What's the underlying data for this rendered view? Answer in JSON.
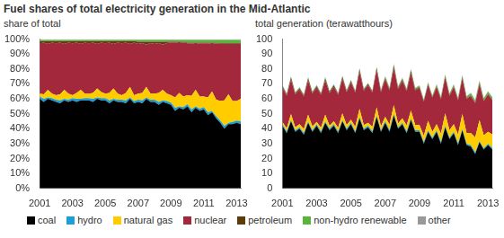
{
  "title": "Fuel shares of total electricity generation in the Mid-Atlantic",
  "chart_data": [
    {
      "type": "area",
      "subtitle": "share of total",
      "stacked": true,
      "grid": false,
      "legend": "bottom",
      "categories": [
        "2001",
        null,
        null,
        null,
        null,
        null,
        null,
        null,
        "2003",
        null,
        null,
        null,
        null,
        null,
        null,
        null,
        "2005",
        null,
        null,
        null,
        null,
        null,
        null,
        null,
        "2007",
        null,
        null,
        null,
        null,
        null,
        null,
        null,
        "2009",
        null,
        null,
        null,
        null,
        null,
        null,
        null,
        "2011",
        null,
        null,
        null,
        null,
        null,
        null,
        null,
        "2013",
        null
      ],
      "ylim": [
        0,
        100
      ],
      "yticks": [
        {
          "value": 0,
          "label": "0%"
        },
        {
          "value": 10,
          "label": "10%"
        },
        {
          "value": 20,
          "label": "20%"
        },
        {
          "value": 30,
          "label": "30%"
        },
        {
          "value": 40,
          "label": "40%"
        },
        {
          "value": 50,
          "label": "50%"
        },
        {
          "value": 60,
          "label": "60%"
        },
        {
          "value": 70,
          "label": "70%"
        },
        {
          "value": 80,
          "label": "80%"
        },
        {
          "value": 90,
          "label": "90%"
        },
        {
          "value": 100,
          "label": "100%"
        }
      ],
      "series": [
        {
          "name": "coal",
          "color": "#000000",
          "values": [
            60,
            58,
            60,
            59,
            58,
            57,
            59,
            58,
            59,
            58,
            59,
            59,
            59,
            58,
            60,
            59,
            59,
            57,
            59,
            58,
            58,
            57,
            60,
            57,
            58,
            57,
            60,
            58,
            58,
            56,
            58,
            57,
            56,
            52,
            54,
            53,
            55,
            51,
            54,
            52,
            53,
            49,
            51,
            47,
            44,
            40,
            43,
            43,
            44,
            43
          ]
        },
        {
          "name": "hydro",
          "color": "#1a9fd9",
          "values": [
            1.5,
            2,
            1,
            1.5,
            1.5,
            2,
            1,
            1.5,
            1.5,
            2,
            1,
            1.5,
            1.5,
            2,
            1,
            1.5,
            1.5,
            2,
            1,
            1.5,
            1.5,
            2,
            1,
            1.5,
            1.5,
            2,
            1,
            1.5,
            1.5,
            2,
            1,
            1.5,
            1.5,
            2,
            1,
            1.5,
            1.5,
            2,
            1,
            1.5,
            1.5,
            2,
            1,
            1.5,
            1.5,
            2,
            1,
            1.5,
            1.5,
            2
          ]
        },
        {
          "name": "natural gas",
          "color": "#ffcc00",
          "values": [
            2,
            3,
            5,
            3,
            3,
            4,
            6,
            4,
            2,
            4,
            6,
            3,
            3,
            4,
            6,
            4,
            3,
            5,
            7,
            4,
            3,
            5,
            7,
            4,
            4,
            5,
            7,
            4,
            4,
            6,
            7,
            5,
            5,
            7,
            9,
            7,
            6,
            9,
            11,
            8,
            7,
            10,
            13,
            11,
            13,
            17,
            19,
            14,
            13,
            15
          ]
        },
        {
          "name": "nuclear",
          "color": "#a3283c",
          "values": [
            33.7,
            34.7,
            30.7,
            34.2,
            34.7,
            34.7,
            30.7,
            34.2,
            34.7,
            33.7,
            30.7,
            34.2,
            33.7,
            33.7,
            29.7,
            33.2,
            33.7,
            33.7,
            29.7,
            34.2,
            34.7,
            33.7,
            28.7,
            35.2,
            33.3,
            33.3,
            28.3,
            33.8,
            33.3,
            33.3,
            30.3,
            33.8,
            35.3,
            36.8,
            33.3,
            36.3,
            34.7,
            35.2,
            30.7,
            35.7,
            35.7,
            36.2,
            31.7,
            37.7,
            38.2,
            37.7,
            33.7,
            38.2,
            38.2,
            36.7
          ]
        },
        {
          "name": "petroleum",
          "color": "#5a3d0a",
          "values": [
            1.5,
            1,
            2,
            1,
            1.5,
            1,
            2,
            1,
            1.5,
            1,
            2,
            1,
            1.5,
            1,
            2,
            1,
            1.5,
            1,
            2,
            1,
            1.5,
            1,
            2,
            1,
            1.5,
            1,
            2,
            1,
            1.5,
            1,
            2,
            1,
            0.5,
            0.5,
            1,
            0.5,
            0.5,
            0.5,
            1,
            0.5,
            0.5,
            0.5,
            1,
            0.5,
            0.5,
            0.5,
            0.5,
            0.5,
            0.5,
            0.5
          ]
        },
        {
          "name": "non-hydro renewable",
          "color": "#5ab43c",
          "values": [
            0.8,
            0.8,
            0.8,
            0.8,
            0.8,
            0.8,
            0.8,
            0.8,
            0.8,
            0.8,
            0.8,
            0.8,
            0.8,
            0.8,
            0.8,
            0.8,
            0.8,
            0.8,
            0.8,
            0.8,
            0.8,
            0.8,
            0.8,
            0.8,
            1.2,
            1.2,
            1.2,
            1.2,
            1.2,
            1.2,
            1.2,
            1.2,
            1.2,
            1.2,
            1.2,
            1.2,
            1.8,
            1.8,
            1.8,
            1.8,
            1.8,
            1.8,
            1.8,
            1.8,
            2.3,
            2.3,
            2.3,
            2.3,
            2.3,
            2.3
          ]
        },
        {
          "name": "other",
          "color": "#999999",
          "values": [
            0.5,
            0.5,
            0.5,
            0.5,
            0.5,
            0.5,
            0.5,
            0.5,
            0.5,
            0.5,
            0.5,
            0.5,
            0.5,
            0.5,
            0.5,
            0.5,
            0.5,
            0.5,
            0.5,
            0.5,
            0.5,
            0.5,
            0.5,
            0.5,
            0.5,
            0.5,
            0.5,
            0.5,
            0.5,
            0.5,
            0.5,
            0.5,
            0.5,
            0.5,
            0.5,
            0.5,
            0.5,
            0.5,
            0.5,
            0.5,
            0.5,
            0.5,
            0.5,
            0.5,
            0.5,
            0.5,
            0.5,
            0.5,
            0.5,
            0.5
          ]
        }
      ]
    },
    {
      "type": "area",
      "subtitle": "total generation  (terawatthours)",
      "stacked": true,
      "grid": false,
      "categories": [
        "2001",
        null,
        null,
        null,
        null,
        null,
        null,
        null,
        "2003",
        null,
        null,
        null,
        null,
        null,
        null,
        null,
        "2005",
        null,
        null,
        null,
        null,
        null,
        null,
        null,
        "2007",
        null,
        null,
        null,
        null,
        null,
        null,
        null,
        "2009",
        null,
        null,
        null,
        null,
        null,
        null,
        null,
        "2011",
        null,
        null,
        null,
        null,
        null,
        null,
        null,
        "2013",
        null
      ],
      "ylim": [
        0,
        100
      ],
      "yticks": [
        0,
        10,
        20,
        30,
        40,
        50,
        60,
        70,
        80,
        90,
        100
      ],
      "series": [
        {
          "name": "coal",
          "color": "#000000",
          "values": [
            42,
            37,
            45,
            38,
            40,
            36,
            44,
            38,
            42,
            37,
            44,
            39,
            42,
            37,
            45,
            39,
            43,
            37,
            47,
            39,
            41,
            37,
            48,
            38,
            44,
            38,
            49,
            40,
            43,
            37,
            46,
            38,
            38,
            30,
            38,
            33,
            38,
            30,
            41,
            33,
            37,
            29,
            39,
            29,
            28,
            23,
            31,
            26,
            29,
            26
          ]
        },
        {
          "name": "hydro",
          "color": "#1a9fd9",
          "values": [
            1,
            1.2,
            0.8,
            1,
            1,
            1.2,
            0.8,
            1,
            1,
            1.2,
            0.8,
            1,
            1,
            1.2,
            0.8,
            1,
            1,
            1.2,
            0.8,
            1,
            1,
            1.2,
            0.8,
            1,
            1,
            1.2,
            0.8,
            1,
            1,
            1.2,
            0.8,
            1,
            1,
            1.2,
            0.8,
            1,
            1,
            1.2,
            0.8,
            1,
            1,
            1.2,
            0.8,
            1,
            1,
            1.2,
            0.8,
            1,
            1,
            1.2
          ]
        },
        {
          "name": "natural gas",
          "color": "#ffcc00",
          "values": [
            1.5,
            2,
            4,
            2,
            2,
            2.5,
            4.5,
            2.5,
            1.5,
            2.5,
            4.5,
            2,
            2,
            2.5,
            4.5,
            2.5,
            2,
            3,
            5.5,
            2.5,
            2,
            3,
            5.5,
            2.5,
            3,
            3.5,
            6,
            2.5,
            3,
            4,
            5.5,
            3.5,
            3.5,
            4,
            6.5,
            4,
            4,
            5.5,
            8.5,
            5,
            5,
            6,
            10,
            7,
            8,
            10,
            14,
            8.5,
            8,
            9
          ]
        },
        {
          "name": "nuclear",
          "color": "#a3283c",
          "values": [
            23,
            22,
            23,
            22,
            23,
            22,
            23,
            22,
            23,
            22,
            23,
            22,
            23,
            22,
            23,
            22,
            25,
            23,
            25,
            23,
            25,
            23,
            25,
            23,
            25,
            23,
            25,
            23,
            25,
            23,
            25,
            23,
            25,
            23,
            24,
            23,
            25,
            23,
            24,
            23,
            25,
            23,
            24,
            23,
            25,
            23,
            24,
            23,
            25,
            23
          ]
        },
        {
          "name": "petroleum",
          "color": "#5a3d0a",
          "values": [
            1,
            0.6,
            1.5,
            0.7,
            1,
            0.6,
            1.5,
            0.7,
            1,
            0.6,
            1.5,
            0.7,
            1,
            0.6,
            1.5,
            0.7,
            1,
            0.6,
            1.5,
            0.7,
            1,
            0.6,
            1.5,
            0.7,
            1,
            0.6,
            1.5,
            0.7,
            1,
            0.6,
            1.5,
            0.7,
            0.3,
            0.3,
            0.7,
            0.3,
            0.3,
            0.3,
            0.7,
            0.3,
            0.3,
            0.3,
            0.7,
            0.3,
            0.3,
            0.3,
            0.7,
            0.3,
            0.3,
            0.3
          ]
        },
        {
          "name": "non-hydro renewable",
          "color": "#5ab43c",
          "values": [
            0.5,
            0.5,
            0.5,
            0.5,
            0.5,
            0.5,
            0.5,
            0.5,
            0.5,
            0.5,
            0.5,
            0.5,
            0.5,
            0.5,
            0.5,
            0.5,
            0.5,
            0.5,
            0.5,
            0.5,
            0.5,
            0.5,
            0.5,
            0.5,
            0.9,
            0.9,
            0.9,
            0.9,
            0.9,
            0.9,
            0.9,
            0.9,
            0.9,
            0.9,
            0.9,
            0.9,
            1.2,
            1.2,
            1.2,
            1.2,
            1.2,
            1.2,
            1.2,
            1.2,
            1.5,
            1.5,
            1.5,
            1.5,
            1.5,
            1.5
          ]
        },
        {
          "name": "other",
          "color": "#999999",
          "values": [
            0.3,
            0.3,
            0.3,
            0.3,
            0.3,
            0.3,
            0.3,
            0.3,
            0.3,
            0.3,
            0.3,
            0.3,
            0.3,
            0.3,
            0.3,
            0.3,
            0.3,
            0.3,
            0.3,
            0.3,
            0.3,
            0.3,
            0.3,
            0.3,
            0.3,
            0.3,
            0.3,
            0.3,
            0.3,
            0.3,
            0.3,
            0.3,
            0.3,
            0.3,
            0.3,
            0.3,
            0.3,
            0.3,
            0.3,
            0.3,
            0.3,
            0.3,
            0.3,
            0.3,
            0.3,
            0.3,
            0.3,
            0.3,
            0.3,
            0.3
          ]
        }
      ]
    }
  ]
}
